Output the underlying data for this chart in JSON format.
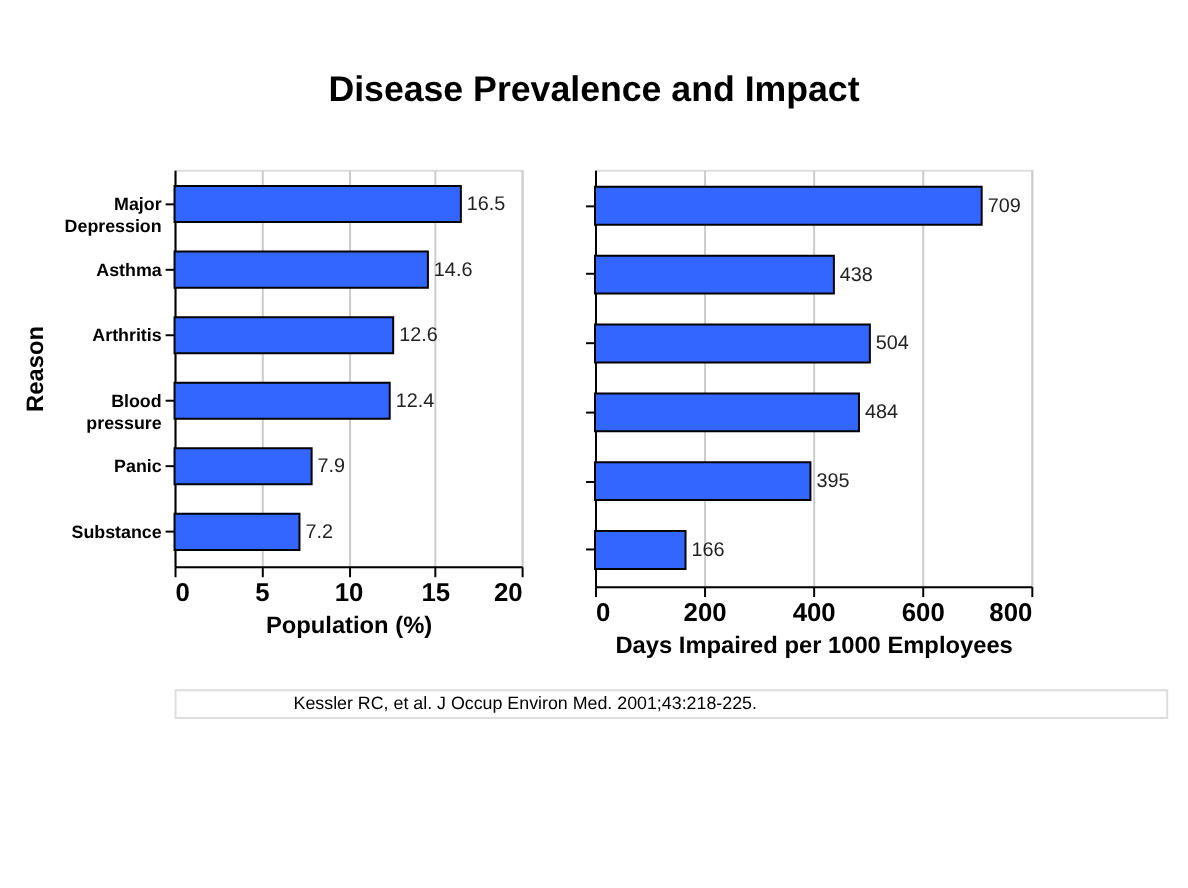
{
  "chart_data": [
    {
      "type": "bar",
      "title": "Disease Prevalence and Impact",
      "orientation": "horizontal",
      "categories": [
        "Major Depression",
        "Asthma",
        "Arthritis",
        "Blood pressure",
        "Panic",
        "Substance"
      ],
      "values": [
        16.5,
        14.6,
        12.6,
        12.4,
        7.9,
        7.2
      ],
      "color": "#3366ff",
      "xlim": [
        0,
        20
      ],
      "xticks": [
        0,
        5,
        10,
        15,
        20
      ],
      "xlabel": "Population (%)",
      "ylabel": "Reason",
      "grid": "x",
      "data_labels": true
    },
    {
      "type": "bar",
      "orientation": "horizontal",
      "categories": [
        null,
        null,
        null,
        null,
        null,
        null
      ],
      "values": [
        709,
        438,
        504,
        484,
        395,
        166
      ],
      "color": "#3366ff",
      "xlim": [
        0,
        800
      ],
      "xticks": [
        0,
        200,
        400,
        600,
        800
      ],
      "xlabel": "Days Impaired per 1000 Employees",
      "grid": "x",
      "data_labels": true,
      "tick_labels": "x",
      "annotations": [
        "Kessler RC, et al. J Occup Environ Med. 2001;43:218-225."
      ]
    }
  ]
}
